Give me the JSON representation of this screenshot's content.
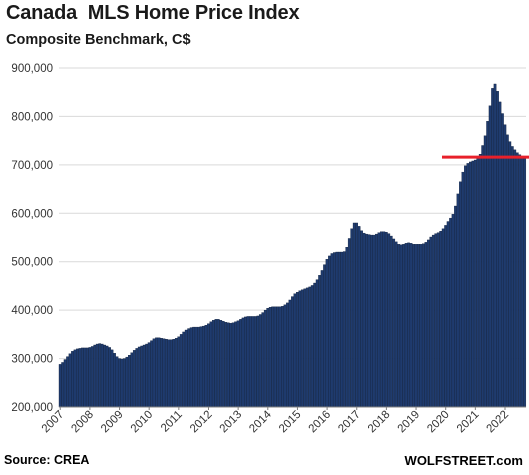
{
  "header": {
    "title": "Canada  MLS Home Price Index",
    "subtitle": "Composite Benchmark, C$"
  },
  "footer": {
    "source": "Source: CREA",
    "brand": "WOLFSTREET.com"
  },
  "colors": {
    "bar_fill": "#1f3b6e",
    "bar_stroke": "#0c1c38",
    "reference_line": "#e8202a",
    "gridline": "#d9d9d9"
  },
  "chart_data": {
    "type": "bar",
    "title": "Canada  MLS Home Price Index",
    "subtitle": "Composite Benchmark, C$",
    "xlabel": "",
    "ylabel": "",
    "ylim": [
      200000,
      900000
    ],
    "yticks": [
      200000,
      300000,
      400000,
      500000,
      600000,
      700000,
      800000,
      900000
    ],
    "ytick_labels": [
      "200,000",
      "300,000",
      "400,000",
      "500,000",
      "600,000",
      "700,000",
      "800,000",
      "900,000"
    ],
    "xtick_labels": [
      "2007",
      "2008",
      "2009",
      "2010",
      "2011",
      "2012",
      "2013",
      "2014",
      "2015",
      "2016",
      "2017",
      "2018",
      "2019",
      "2020",
      "2021",
      "2022"
    ],
    "grid": "horizontal",
    "start": "2007-01",
    "frequency": "monthly",
    "series": [
      {
        "values": [
          288000,
          292000,
          298000,
          304000,
          310000,
          315000,
          318000,
          320000,
          321000,
          322000,
          322000,
          322000,
          323000,
          325000,
          328000,
          330000,
          331000,
          330000,
          328000,
          326000,
          323000,
          318000,
          311000,
          304000,
          300000,
          299000,
          300000,
          303000,
          307000,
          312000,
          317000,
          321000,
          324000,
          326000,
          328000,
          330000,
          333000,
          337000,
          341000,
          343000,
          343000,
          342000,
          341000,
          340000,
          339000,
          339000,
          340000,
          342000,
          345000,
          350000,
          355000,
          359000,
          362000,
          364000,
          365000,
          365000,
          365000,
          366000,
          367000,
          369000,
          372000,
          376000,
          379000,
          381000,
          381000,
          379000,
          377000,
          375000,
          374000,
          373000,
          374000,
          376000,
          378000,
          381000,
          384000,
          386000,
          387000,
          387000,
          387000,
          387000,
          388000,
          391000,
          395000,
          400000,
          404000,
          406000,
          407000,
          407000,
          407000,
          407000,
          408000,
          411000,
          415000,
          421000,
          428000,
          434000,
          437000,
          440000,
          442000,
          444000,
          446000,
          448000,
          451000,
          456000,
          463000,
          472000,
          482000,
          494000,
          505000,
          512000,
          517000,
          519000,
          520000,
          520000,
          520000,
          521000,
          530000,
          548000,
          568000,
          580000,
          580000,
          573000,
          564000,
          559000,
          557000,
          556000,
          555000,
          555000,
          557000,
          560000,
          562000,
          562000,
          561000,
          558000,
          553000,
          547000,
          541000,
          536000,
          535000,
          536000,
          538000,
          539000,
          538000,
          536000,
          536000,
          536000,
          536000,
          537000,
          540000,
          545000,
          551000,
          555000,
          558000,
          560000,
          563000,
          568000,
          575000,
          583000,
          590000,
          598000,
          615000,
          640000,
          665000,
          685000,
          698000,
          703000,
          706000,
          708000,
          710000,
          714000,
          722000,
          740000,
          760000,
          790000,
          822000,
          858000,
          867000,
          852000,
          830000,
          806000,
          783000,
          762000,
          748000,
          738000,
          731000,
          725000,
          721000,
          718000,
          715000
        ]
      }
    ],
    "reference_line": {
      "y": 716000,
      "from": "2019-12",
      "to": "2022-12"
    }
  }
}
